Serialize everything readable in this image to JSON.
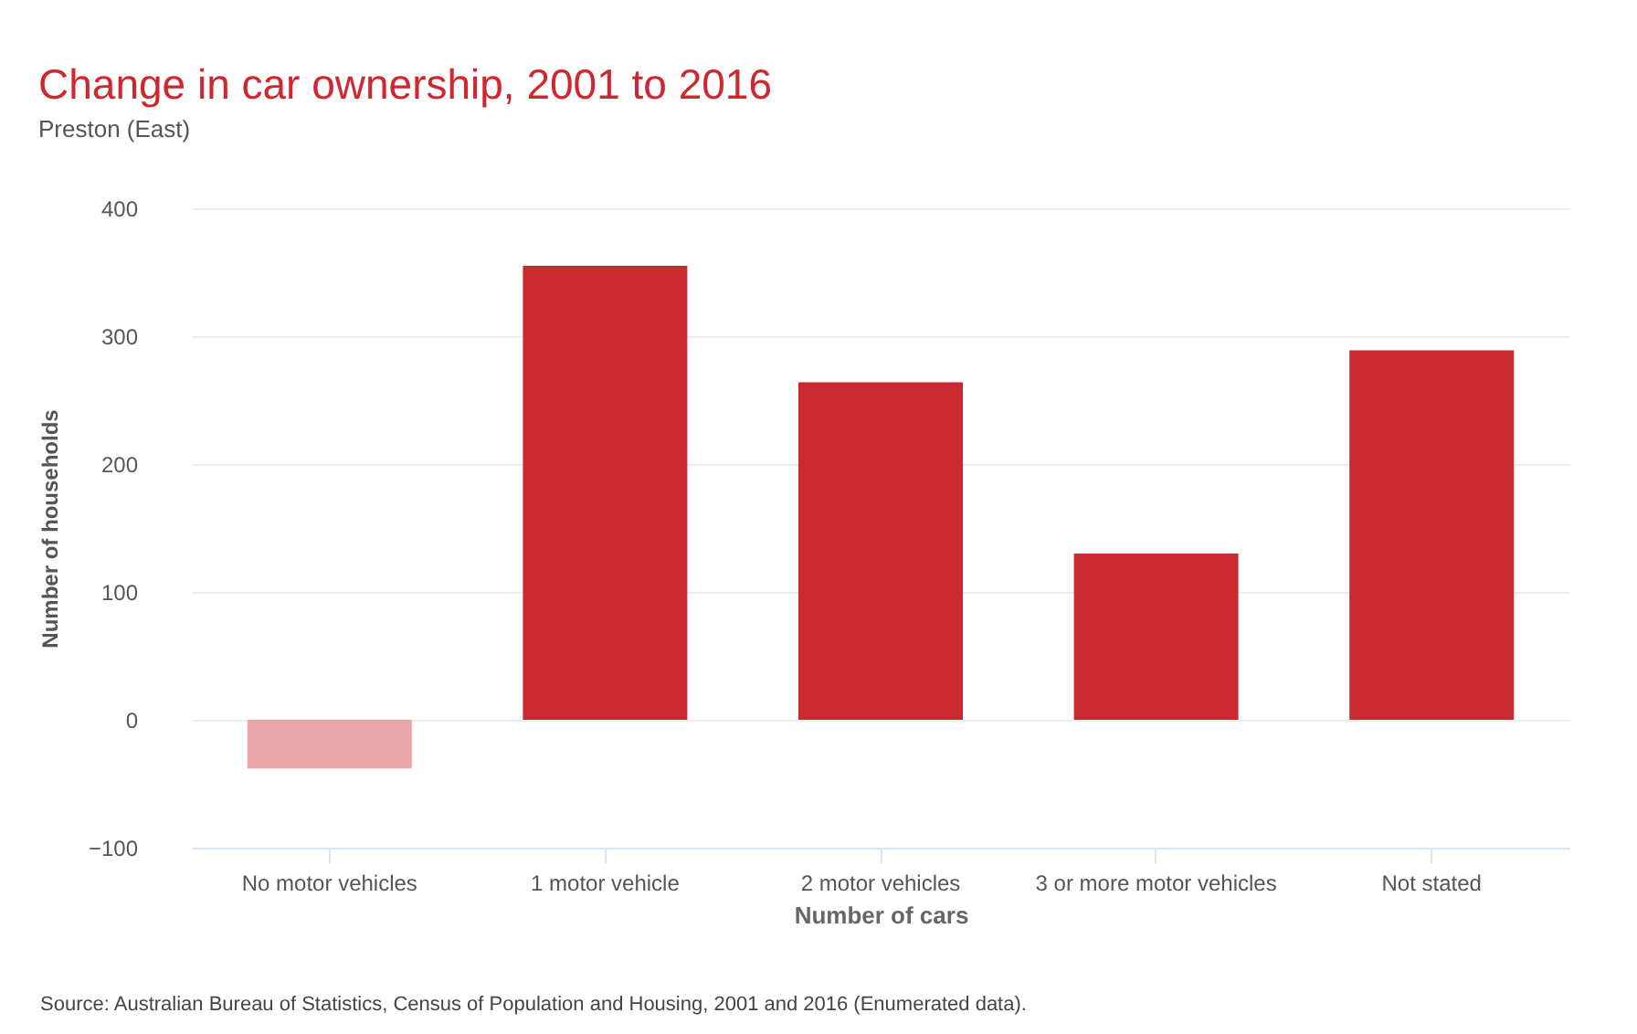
{
  "chart_data": {
    "type": "bar",
    "title": "Change in car ownership, 2001 to 2016",
    "subtitle": "Preston (East)",
    "xlabel": "Number of cars",
    "ylabel": "Number of households",
    "categories": [
      "No motor vehicles",
      "1 motor vehicle",
      "2 motor vehicles",
      "3 or more motor vehicles",
      "Not stated"
    ],
    "values": [
      -38,
      355,
      264,
      130,
      289
    ],
    "colors": [
      "#e9a5a7",
      "#c92a30",
      "#c92a30",
      "#c92a30",
      "#c92a30"
    ],
    "ylim": [
      -100,
      400
    ],
    "yticks": [
      -100,
      0,
      100,
      200,
      300,
      400
    ],
    "grid": "y",
    "annotations": [
      "Source: Australian Bureau of Statistics, Census of Population and Housing, 2001 and 2016 (Enumerated data)."
    ]
  }
}
